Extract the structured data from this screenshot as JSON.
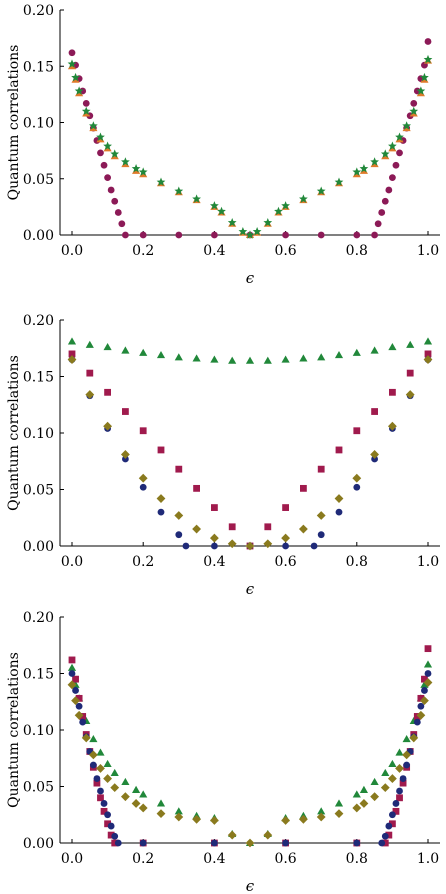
{
  "figure": {
    "colors": {
      "purple": "#8c1a57",
      "green": "#21883a",
      "orange": "#e07a2a",
      "navy": "#1f2a78",
      "crimson": "#a01a4d",
      "olive": "#8a7a1e"
    }
  },
  "chart_data": [
    {
      "type": "scatter",
      "title": "",
      "xlabel": "ϵ",
      "ylabel": "Quantum correlations",
      "xlim": [
        0,
        1
      ],
      "ylim": [
        0,
        0.2
      ],
      "xticks": [
        "0.0",
        "0.2",
        "0.4",
        "0.6",
        "0.8",
        "1.0"
      ],
      "yticks": [
        "0.00",
        "0.05",
        "0.10",
        "0.15",
        "0.20"
      ],
      "grid": false,
      "series": [
        {
          "marker": "circle",
          "color": "purple",
          "description": "steep",
          "x": [
            0.0,
            0.01,
            0.02,
            0.03,
            0.04,
            0.05,
            0.06,
            0.07,
            0.08,
            0.09,
            0.1,
            0.11,
            0.12,
            0.13,
            0.14,
            0.15,
            0.2,
            0.3,
            0.4,
            0.5,
            0.6,
            0.7,
            0.8,
            0.85,
            0.86,
            0.87,
            0.88,
            0.89,
            0.9,
            0.91,
            0.92,
            0.93,
            0.94,
            0.95,
            0.96,
            0.97,
            0.98,
            0.99,
            1.0
          ],
          "y": [
            0.162,
            0.151,
            0.139,
            0.128,
            0.117,
            0.106,
            0.095,
            0.084,
            0.073,
            0.062,
            0.051,
            0.04,
            0.03,
            0.02,
            0.01,
            0.0,
            0.0,
            0.0,
            0.0,
            0.0,
            0.0,
            0.0,
            0.0,
            0.0,
            0.01,
            0.02,
            0.03,
            0.04,
            0.051,
            0.062,
            0.073,
            0.084,
            0.095,
            0.106,
            0.117,
            0.128,
            0.139,
            0.151,
            0.172
          ]
        },
        {
          "marker": "triangle",
          "color": "orange",
          "description": "smooth",
          "x": [
            0.0,
            0.01,
            0.02,
            0.04,
            0.06,
            0.08,
            0.1,
            0.12,
            0.15,
            0.18,
            0.2,
            0.25,
            0.3,
            0.35,
            0.4,
            0.42,
            0.45,
            0.48,
            0.5,
            0.52,
            0.55,
            0.58,
            0.6,
            0.65,
            0.7,
            0.75,
            0.8,
            0.82,
            0.85,
            0.88,
            0.9,
            0.92,
            0.94,
            0.96,
            0.98,
            0.99,
            1.0
          ],
          "y": [
            0.15,
            0.138,
            0.126,
            0.108,
            0.095,
            0.085,
            0.077,
            0.07,
            0.063,
            0.057,
            0.054,
            0.046,
            0.038,
            0.031,
            0.025,
            0.02,
            0.01,
            0.002,
            0.0,
            0.002,
            0.01,
            0.02,
            0.025,
            0.031,
            0.038,
            0.046,
            0.054,
            0.057,
            0.063,
            0.07,
            0.077,
            0.085,
            0.095,
            0.108,
            0.126,
            0.138,
            0.155
          ]
        },
        {
          "marker": "star",
          "color": "green",
          "description": "smooth",
          "x": [
            0.0,
            0.01,
            0.02,
            0.04,
            0.06,
            0.08,
            0.1,
            0.12,
            0.15,
            0.18,
            0.2,
            0.25,
            0.3,
            0.35,
            0.4,
            0.42,
            0.45,
            0.48,
            0.5,
            0.52,
            0.55,
            0.58,
            0.6,
            0.65,
            0.7,
            0.75,
            0.8,
            0.82,
            0.85,
            0.88,
            0.9,
            0.92,
            0.94,
            0.96,
            0.98,
            0.99,
            1.0
          ],
          "y": [
            0.152,
            0.14,
            0.128,
            0.11,
            0.097,
            0.087,
            0.079,
            0.072,
            0.065,
            0.059,
            0.056,
            0.047,
            0.039,
            0.032,
            0.026,
            0.021,
            0.011,
            0.003,
            0.0,
            0.003,
            0.011,
            0.021,
            0.026,
            0.032,
            0.039,
            0.047,
            0.056,
            0.059,
            0.065,
            0.072,
            0.079,
            0.087,
            0.097,
            0.11,
            0.128,
            0.14,
            0.156
          ]
        }
      ]
    },
    {
      "type": "scatter",
      "title": "",
      "xlabel": "ϵ",
      "ylabel": "Quantum correlations",
      "xlim": [
        0,
        1
      ],
      "ylim": [
        0,
        0.2
      ],
      "xticks": [
        "0.0",
        "0.2",
        "0.4",
        "0.6",
        "0.8",
        "1.0"
      ],
      "yticks": [
        "0.00",
        "0.05",
        "0.10",
        "0.15",
        "0.20"
      ],
      "grid": false,
      "series": [
        {
          "marker": "triangle",
          "color": "green",
          "x": [
            0.0,
            0.05,
            0.1,
            0.15,
            0.2,
            0.25,
            0.3,
            0.35,
            0.4,
            0.45,
            0.5,
            0.55,
            0.6,
            0.65,
            0.7,
            0.75,
            0.8,
            0.85,
            0.9,
            0.95,
            1.0
          ],
          "y": [
            0.181,
            0.178,
            0.176,
            0.173,
            0.171,
            0.169,
            0.167,
            0.166,
            0.165,
            0.164,
            0.164,
            0.164,
            0.165,
            0.166,
            0.167,
            0.169,
            0.171,
            0.173,
            0.176,
            0.178,
            0.181
          ]
        },
        {
          "marker": "square",
          "color": "crimson",
          "x": [
            0.0,
            0.05,
            0.1,
            0.15,
            0.2,
            0.25,
            0.3,
            0.35,
            0.4,
            0.45,
            0.5,
            0.55,
            0.6,
            0.65,
            0.7,
            0.75,
            0.8,
            0.85,
            0.9,
            0.95,
            1.0
          ],
          "y": [
            0.17,
            0.153,
            0.136,
            0.119,
            0.102,
            0.085,
            0.068,
            0.051,
            0.034,
            0.017,
            0.0,
            0.017,
            0.034,
            0.051,
            0.068,
            0.085,
            0.102,
            0.119,
            0.136,
            0.153,
            0.17
          ]
        },
        {
          "marker": "circle",
          "color": "navy",
          "x": [
            0.0,
            0.05,
            0.1,
            0.15,
            0.2,
            0.25,
            0.3,
            0.32,
            0.4,
            0.5,
            0.6,
            0.68,
            0.7,
            0.75,
            0.8,
            0.85,
            0.9,
            0.95,
            1.0
          ],
          "y": [
            0.165,
            0.133,
            0.104,
            0.077,
            0.052,
            0.03,
            0.01,
            0.0,
            0.0,
            0.0,
            0.0,
            0.0,
            0.01,
            0.03,
            0.052,
            0.077,
            0.104,
            0.133,
            0.165
          ]
        },
        {
          "marker": "diamond",
          "color": "olive",
          "x": [
            0.0,
            0.05,
            0.1,
            0.15,
            0.2,
            0.25,
            0.3,
            0.35,
            0.4,
            0.45,
            0.5,
            0.55,
            0.6,
            0.65,
            0.7,
            0.75,
            0.8,
            0.85,
            0.9,
            0.95,
            1.0
          ],
          "y": [
            0.165,
            0.134,
            0.106,
            0.081,
            0.06,
            0.042,
            0.027,
            0.015,
            0.007,
            0.002,
            0.0,
            0.002,
            0.007,
            0.015,
            0.027,
            0.042,
            0.06,
            0.081,
            0.106,
            0.134,
            0.165
          ]
        }
      ]
    },
    {
      "type": "scatter",
      "title": "",
      "xlabel": "ϵ",
      "ylabel": "Quantum correlations",
      "xlim": [
        0,
        1
      ],
      "ylim": [
        0,
        0.2
      ],
      "xticks": [
        "0.0",
        "0.2",
        "0.4",
        "0.6",
        "0.8",
        "1.0"
      ],
      "yticks": [
        "0.00",
        "0.05",
        "0.10",
        "0.15",
        "0.20"
      ],
      "grid": false,
      "series": [
        {
          "marker": "triangle",
          "color": "green",
          "x": [
            0.0,
            0.01,
            0.02,
            0.04,
            0.06,
            0.08,
            0.1,
            0.12,
            0.15,
            0.18,
            0.2,
            0.25,
            0.3,
            0.35,
            0.4,
            0.45,
            0.5,
            0.55,
            0.6,
            0.65,
            0.7,
            0.75,
            0.8,
            0.82,
            0.85,
            0.88,
            0.9,
            0.92,
            0.94,
            0.96,
            0.98,
            0.99,
            1.0
          ],
          "y": [
            0.155,
            0.14,
            0.128,
            0.108,
            0.092,
            0.08,
            0.07,
            0.062,
            0.054,
            0.047,
            0.043,
            0.035,
            0.028,
            0.024,
            0.022,
            0.008,
            0.0,
            0.008,
            0.022,
            0.024,
            0.028,
            0.035,
            0.043,
            0.047,
            0.054,
            0.062,
            0.07,
            0.08,
            0.092,
            0.108,
            0.128,
            0.14,
            0.158
          ]
        },
        {
          "marker": "square",
          "color": "crimson",
          "x": [
            0.0,
            0.01,
            0.02,
            0.03,
            0.04,
            0.05,
            0.06,
            0.07,
            0.08,
            0.09,
            0.1,
            0.11,
            0.12,
            0.2,
            0.4,
            0.6,
            0.8,
            0.88,
            0.89,
            0.9,
            0.91,
            0.92,
            0.93,
            0.94,
            0.95,
            0.96,
            0.97,
            0.98,
            0.99,
            1.0
          ],
          "y": [
            0.162,
            0.145,
            0.128,
            0.112,
            0.096,
            0.081,
            0.067,
            0.053,
            0.04,
            0.028,
            0.017,
            0.007,
            0.0,
            0.0,
            0.0,
            0.0,
            0.0,
            0.0,
            0.007,
            0.017,
            0.028,
            0.04,
            0.053,
            0.067,
            0.081,
            0.096,
            0.112,
            0.128,
            0.145,
            0.172
          ]
        },
        {
          "marker": "circle",
          "color": "navy",
          "x": [
            0.0,
            0.01,
            0.02,
            0.03,
            0.04,
            0.05,
            0.06,
            0.07,
            0.08,
            0.09,
            0.1,
            0.11,
            0.12,
            0.13,
            0.2,
            0.4,
            0.6,
            0.8,
            0.87,
            0.88,
            0.89,
            0.9,
            0.91,
            0.92,
            0.93,
            0.94,
            0.95,
            0.96,
            0.97,
            0.98,
            0.99,
            1.0
          ],
          "y": [
            0.15,
            0.135,
            0.121,
            0.107,
            0.094,
            0.081,
            0.069,
            0.057,
            0.046,
            0.035,
            0.025,
            0.015,
            0.006,
            0.0,
            0.0,
            0.0,
            0.0,
            0.0,
            0.0,
            0.006,
            0.015,
            0.025,
            0.035,
            0.046,
            0.057,
            0.069,
            0.081,
            0.094,
            0.107,
            0.121,
            0.135,
            0.15
          ]
        },
        {
          "marker": "diamond",
          "color": "olive",
          "x": [
            0.0,
            0.01,
            0.02,
            0.04,
            0.06,
            0.08,
            0.1,
            0.12,
            0.15,
            0.18,
            0.2,
            0.25,
            0.3,
            0.35,
            0.4,
            0.45,
            0.5,
            0.55,
            0.6,
            0.65,
            0.7,
            0.75,
            0.8,
            0.82,
            0.85,
            0.88,
            0.9,
            0.92,
            0.94,
            0.96,
            0.98,
            0.99,
            1.0
          ],
          "y": [
            0.14,
            0.126,
            0.113,
            0.093,
            0.078,
            0.066,
            0.057,
            0.049,
            0.041,
            0.035,
            0.031,
            0.026,
            0.023,
            0.021,
            0.02,
            0.007,
            0.0,
            0.007,
            0.02,
            0.021,
            0.023,
            0.026,
            0.031,
            0.035,
            0.041,
            0.049,
            0.057,
            0.066,
            0.078,
            0.093,
            0.113,
            0.126,
            0.142
          ]
        }
      ]
    }
  ]
}
